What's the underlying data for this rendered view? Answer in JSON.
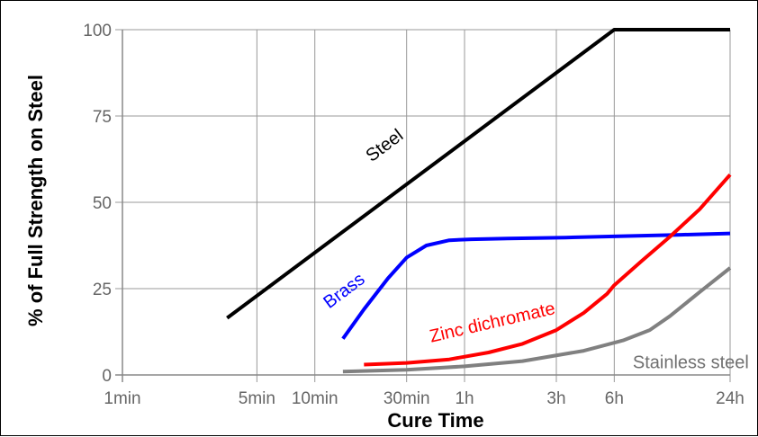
{
  "chart_data": {
    "type": "line",
    "title": "",
    "xlabel": "Cure Time",
    "ylabel": "% of Full Strength on Steel",
    "x_scale": "log",
    "x_unit": "minutes",
    "xlim": [
      1,
      1440
    ],
    "ylim": [
      0,
      100
    ],
    "x_ticks": [
      {
        "value": 1,
        "label": "1min"
      },
      {
        "value": 5,
        "label": "5min"
      },
      {
        "value": 10,
        "label": "10min"
      },
      {
        "value": 30,
        "label": "30min"
      },
      {
        "value": 60,
        "label": "1h"
      },
      {
        "value": 180,
        "label": "3h"
      },
      {
        "value": 360,
        "label": "6h"
      },
      {
        "value": 1440,
        "label": "24h"
      }
    ],
    "y_ticks": [
      {
        "value": 0,
        "label": "0"
      },
      {
        "value": 25,
        "label": "25"
      },
      {
        "value": 50,
        "label": "50"
      },
      {
        "value": 75,
        "label": "75"
      },
      {
        "value": 100,
        "label": "100"
      }
    ],
    "grid": true,
    "legend": "inline labels",
    "series": [
      {
        "name": "Steel",
        "color": "#000000",
        "x": [
          3.5,
          360,
          1440
        ],
        "y": [
          16.5,
          100,
          100
        ]
      },
      {
        "name": "Brass",
        "color": "#0000ff",
        "x": [
          14,
          18,
          24,
          30,
          38,
          50,
          65,
          100,
          200,
          400,
          800,
          1440
        ],
        "y": [
          10.5,
          19,
          28,
          34,
          37.5,
          39,
          39.3,
          39.5,
          39.8,
          40.2,
          40.6,
          41
        ]
      },
      {
        "name": "Zinc dichromate",
        "color": "#ff0000",
        "x": [
          18,
          30,
          50,
          80,
          120,
          180,
          250,
          330,
          360,
          500,
          700,
          1000,
          1440
        ],
        "y": [
          3,
          3.5,
          4.5,
          6.5,
          9,
          13,
          18,
          23.5,
          26,
          33,
          40,
          48,
          58
        ]
      },
      {
        "name": "Stainless steel",
        "color": "#808080",
        "x": [
          14,
          30,
          60,
          120,
          250,
          400,
          550,
          700,
          1000,
          1440
        ],
        "y": [
          1,
          1.5,
          2.5,
          4,
          7,
          10,
          13,
          17,
          24,
          31
        ]
      }
    ]
  }
}
